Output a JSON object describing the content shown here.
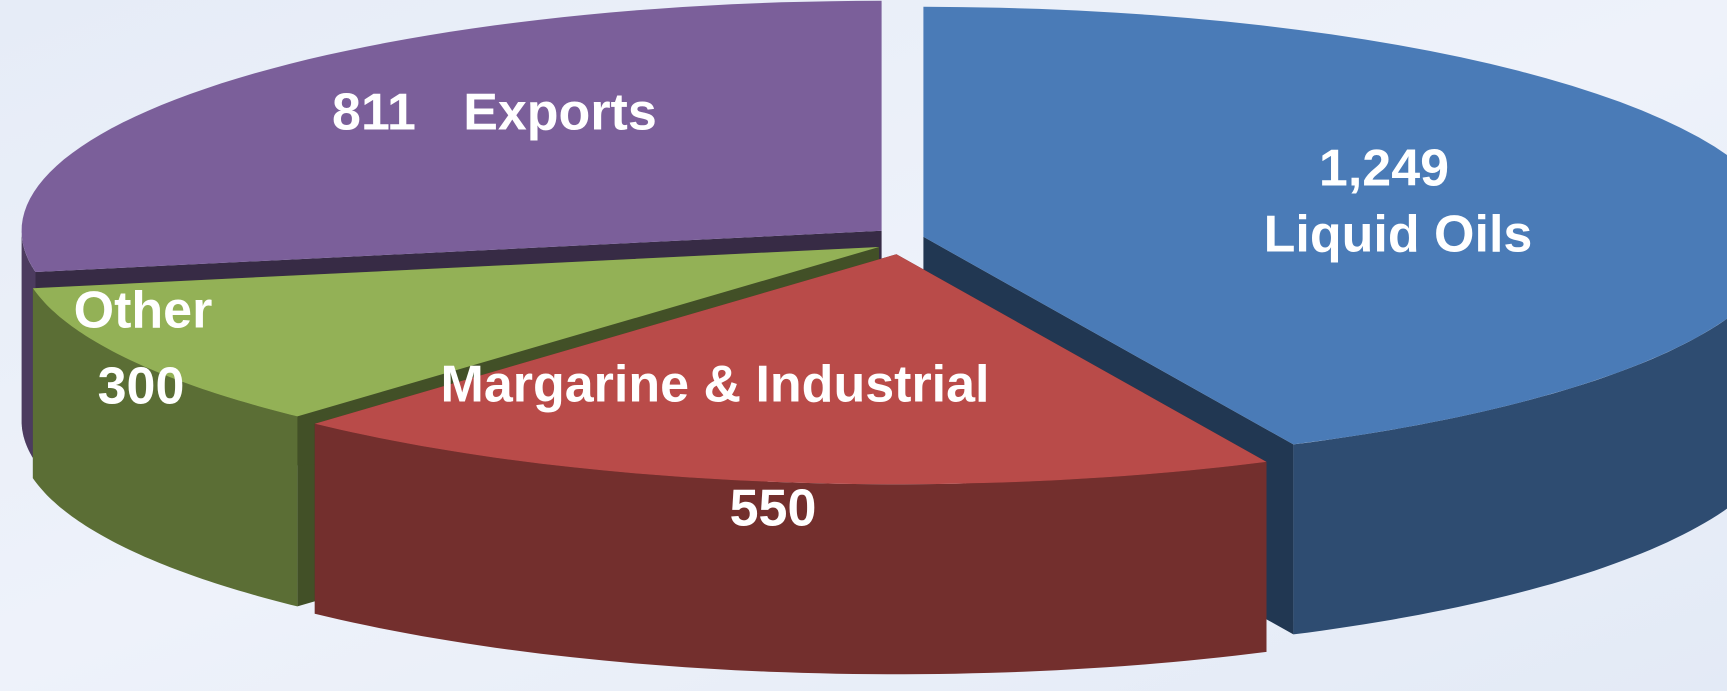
{
  "chart_data": {
    "type": "pie",
    "categories": [
      "Liquid Oils",
      "Margarine & Industrial",
      "Other",
      "Exports"
    ],
    "values": [
      1249,
      550,
      300,
      811
    ],
    "value_labels": [
      "1,249",
      "550",
      "300",
      "811"
    ],
    "colors": [
      "#4a7bb7",
      "#b94b49",
      "#93b156",
      "#7b5f9a"
    ]
  }
}
